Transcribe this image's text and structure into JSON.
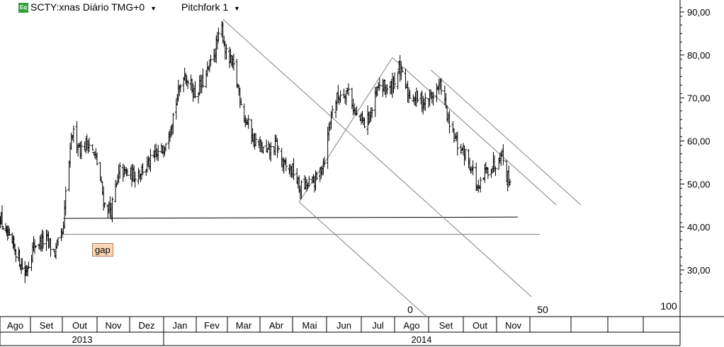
{
  "header": {
    "eq_badge": "Eq",
    "symbol_text": "SCTY:xnas Diário TMG+0",
    "pitchfork_text": "Pitchfork 1"
  },
  "annotations": {
    "gap_label": "gap",
    "fork_labels": [
      "0",
      "50",
      "100"
    ]
  },
  "colors": {
    "background": "#ffffff",
    "bars": "#000000",
    "pitchfork": "#808080",
    "support_line": "#000000",
    "gap_fill": "#f9d7b5",
    "eq_badge": "#2e9e3e"
  },
  "chart_data": {
    "type": "ohlc",
    "title": "SCTY:xnas Diário TMG+0",
    "ylim": [
      20,
      92
    ],
    "y_ticks": [
      "90,00",
      "80,00",
      "70,00",
      "60,00",
      "50,00",
      "40,00",
      "30,00"
    ],
    "y_tick_values": [
      90,
      80,
      70,
      60,
      50,
      40,
      30
    ],
    "x_months": [
      "Ago",
      "Set",
      "Out",
      "Nov",
      "Dez",
      "Jan",
      "Fev",
      "Mar",
      "Abr",
      "Mai",
      "Jun",
      "Jul",
      "Ago",
      "Set",
      "Out",
      "Nov"
    ],
    "x_years": [
      "2013",
      "2014"
    ],
    "price_path": [
      [
        "2013-07-29",
        43
      ],
      [
        "2013-08-05",
        38
      ],
      [
        "2013-08-15",
        35
      ],
      [
        "2013-08-26",
        29
      ],
      [
        "2013-09-05",
        36
      ],
      [
        "2013-09-16",
        37
      ],
      [
        "2013-09-24",
        34
      ],
      [
        "2013-10-02",
        39
      ],
      [
        "2013-10-04",
        48
      ],
      [
        "2013-10-10",
        62
      ],
      [
        "2013-10-18",
        58
      ],
      [
        "2013-10-24",
        60
      ],
      [
        "2013-11-01",
        55
      ],
      [
        "2013-11-08",
        45
      ],
      [
        "2013-11-14",
        44
      ],
      [
        "2013-11-22",
        53
      ],
      [
        "2013-12-04",
        52
      ],
      [
        "2013-12-16",
        54
      ],
      [
        "2013-12-31",
        58
      ],
      [
        "2014-01-10",
        66
      ],
      [
        "2014-01-20",
        76
      ],
      [
        "2014-01-31",
        71
      ],
      [
        "2014-02-10",
        75
      ],
      [
        "2014-02-24",
        86
      ],
      [
        "2014-02-28",
        80
      ],
      [
        "2014-03-07",
        77
      ],
      [
        "2014-03-17",
        66
      ],
      [
        "2014-03-27",
        60
      ],
      [
        "2014-04-07",
        57
      ],
      [
        "2014-04-16",
        59
      ],
      [
        "2014-04-23",
        54
      ],
      [
        "2014-05-02",
        53
      ],
      [
        "2014-05-07",
        49
      ],
      [
        "2014-05-16",
        50
      ],
      [
        "2014-05-23",
        51
      ],
      [
        "2014-05-30",
        56
      ],
      [
        "2014-06-06",
        68
      ],
      [
        "2014-06-13",
        71
      ],
      [
        "2014-06-20",
        72
      ],
      [
        "2014-06-26",
        66
      ],
      [
        "2014-07-04",
        64
      ],
      [
        "2014-07-11",
        67
      ],
      [
        "2014-07-18",
        73
      ],
      [
        "2014-07-28",
        72
      ],
      [
        "2014-08-05",
        77
      ],
      [
        "2014-08-13",
        71
      ],
      [
        "2014-08-22",
        70
      ],
      [
        "2014-08-29",
        69
      ],
      [
        "2014-09-05",
        71
      ],
      [
        "2014-09-12",
        73
      ],
      [
        "2014-09-19",
        63
      ],
      [
        "2014-09-26",
        59
      ],
      [
        "2014-10-03",
        57
      ],
      [
        "2014-10-10",
        53
      ],
      [
        "2014-10-15",
        48
      ],
      [
        "2014-10-22",
        53
      ],
      [
        "2014-10-31",
        55
      ],
      [
        "2014-11-05",
        58
      ],
      [
        "2014-11-10",
        52
      ],
      [
        "2014-11-13",
        51
      ]
    ],
    "support_lines": [
      {
        "from": [
          "2013-10-02",
          42
        ],
        "to": [
          "2014-11-20",
          42.3
        ]
      },
      {
        "from": [
          "2013-10-02",
          38.3
        ],
        "to": [
          "2014-12-10",
          38.3
        ]
      }
    ],
    "pitchfork": {
      "pivot_a": [
        "2014-02-25",
        88.3
      ],
      "pivot_b": [
        "2014-05-07",
        45.8
      ],
      "pivot_c": [
        "2014-07-30",
        79.4
      ]
    }
  }
}
